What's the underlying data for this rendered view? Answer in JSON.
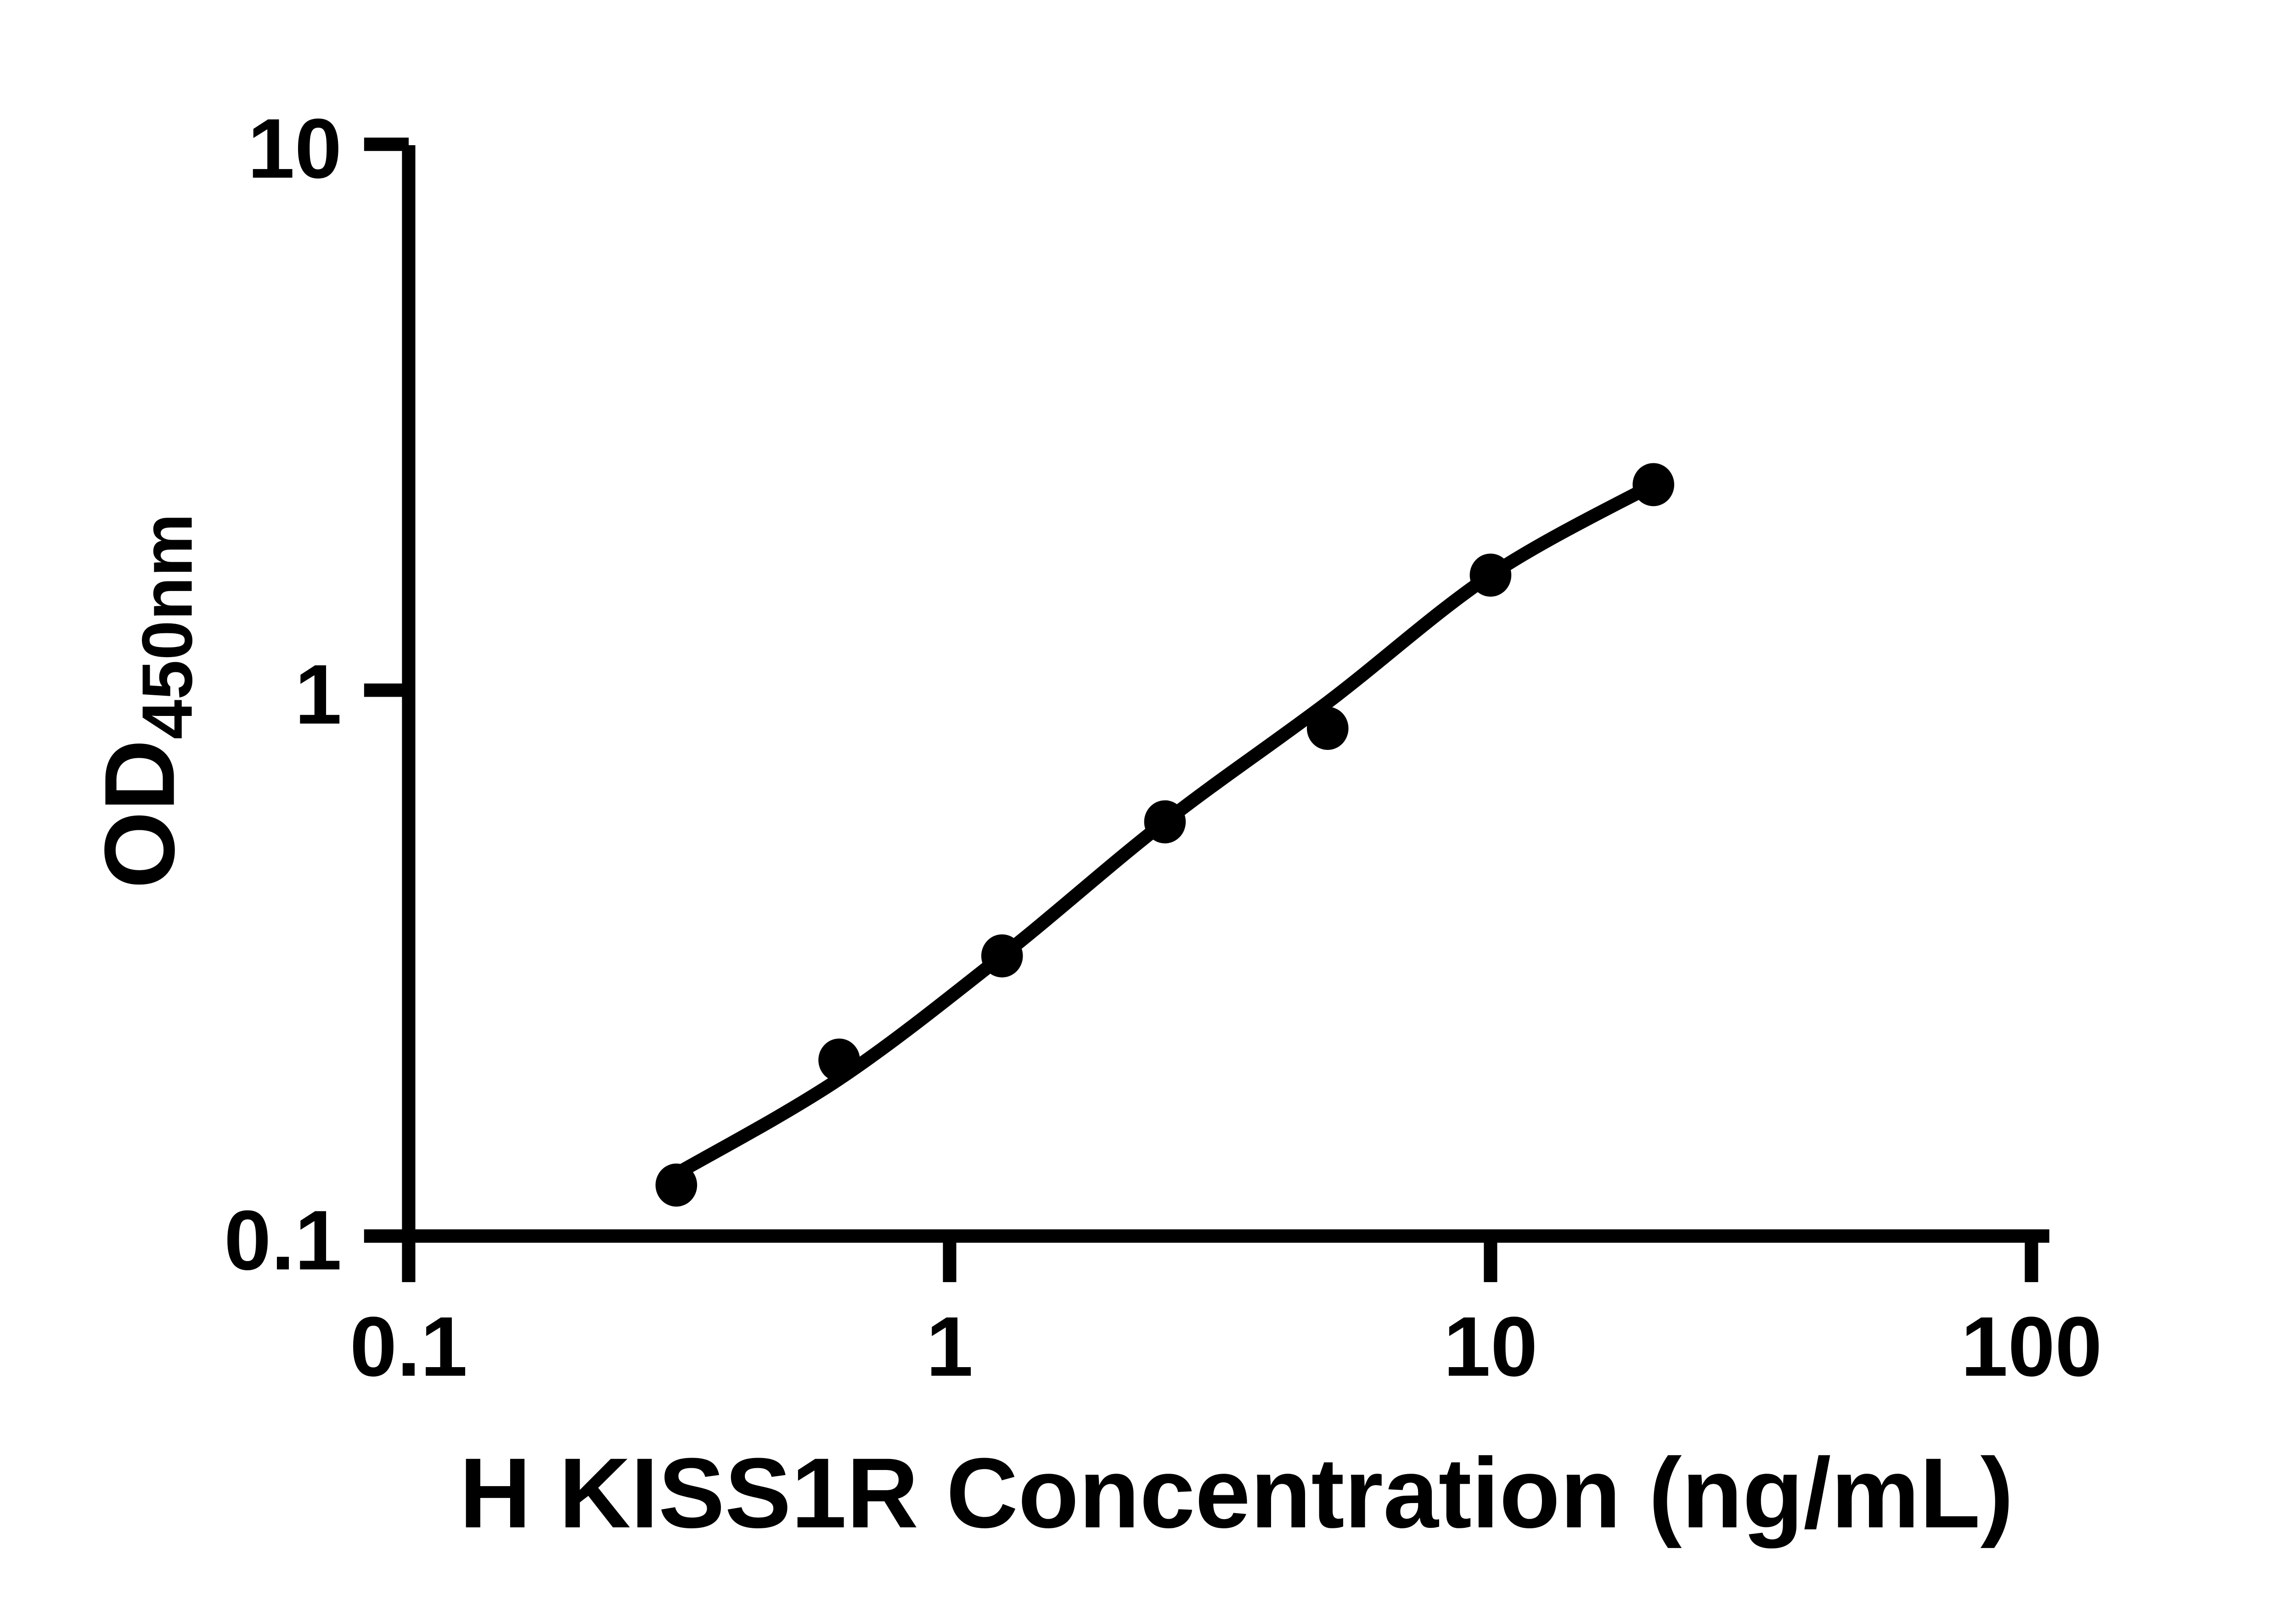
{
  "figure": {
    "background_color": "#ffffff",
    "ink_color": "#000000"
  },
  "chart_data": {
    "type": "scatter",
    "title": "",
    "xlabel": "H KISS1R Concentration (ng/mL)",
    "ylabel": "OD",
    "ylabel_subscript": "450nm",
    "x_scale": "log",
    "y_scale": "log",
    "xlim": [
      0.1,
      100
    ],
    "ylim": [
      0.1,
      10
    ],
    "x_ticks": [
      0.1,
      1,
      10,
      100
    ],
    "x_tick_labels": [
      "0.1",
      "1",
      "10",
      "100"
    ],
    "y_ticks": [
      0.1,
      1,
      10
    ],
    "y_tick_labels": [
      "0.1",
      "1",
      "10"
    ],
    "grid": false,
    "legend_position": "none",
    "series": [
      {
        "name": "standard-curve-points",
        "marker": "filled-circle",
        "color": "#000000",
        "x": [
          0.3125,
          0.625,
          1.25,
          2.5,
          5,
          10,
          20
        ],
        "y": [
          0.124,
          0.21,
          0.326,
          0.574,
          0.851,
          1.625,
          2.38
        ]
      }
    ],
    "fit_curve": {
      "name": "4pl-fit-line",
      "color": "#000000",
      "x": [
        0.3125,
        0.625,
        1.25,
        2.5,
        5,
        10,
        20
      ],
      "y": [
        0.13,
        0.194,
        0.326,
        0.574,
        0.95,
        1.625,
        2.38
      ]
    }
  }
}
